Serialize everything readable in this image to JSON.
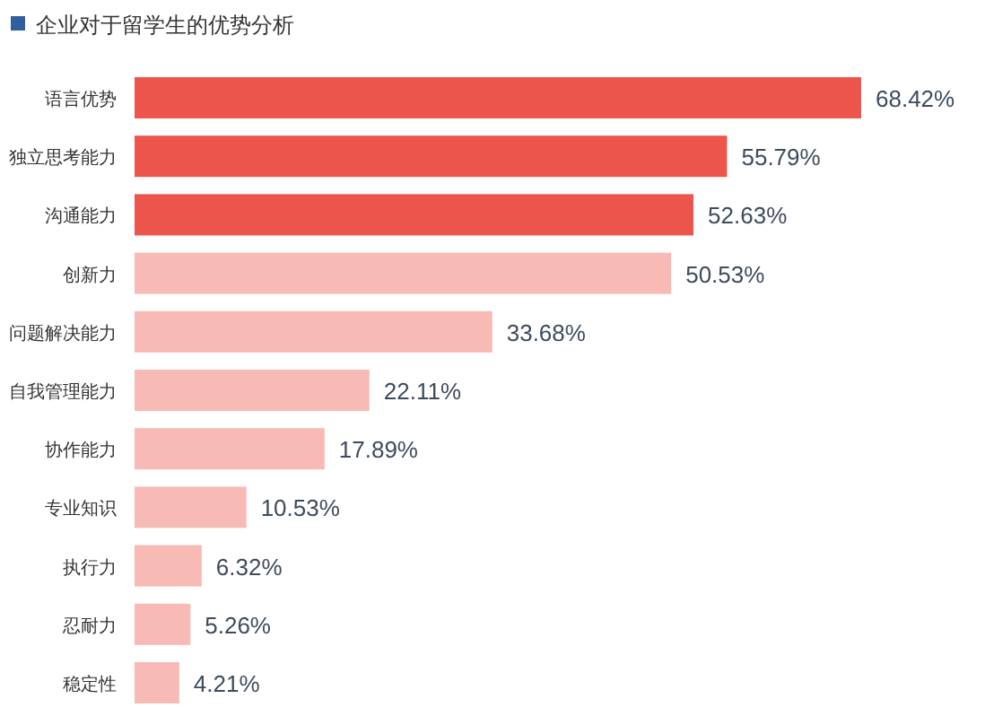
{
  "chart_data": {
    "type": "bar",
    "orientation": "horizontal",
    "title": "企业对于留学生的优势分析",
    "categories": [
      "语言优势",
      "独立思考能力",
      "沟通能力",
      "创新力",
      "问题解决能力",
      "自我管理能力",
      "协作能力",
      "专业知识",
      "执行力",
      "忍耐力",
      "稳定性"
    ],
    "values": [
      68.42,
      55.79,
      52.63,
      50.53,
      33.68,
      22.11,
      17.89,
      10.53,
      6.32,
      5.26,
      4.21
    ],
    "colors": [
      "#ec554c",
      "#ec554c",
      "#ec554c",
      "#f7bab4",
      "#f7bab4",
      "#f7bab4",
      "#f7bab4",
      "#f7bab4",
      "#f7bab4",
      "#f7bab4",
      "#f7bab4"
    ],
    "value_labels": [
      "68.42%",
      "55.79%",
      "52.63%",
      "50.53%",
      "33.68%",
      "22.11%",
      "17.89%",
      "10.53%",
      "6.32%",
      "5.26%",
      "4.21%"
    ]
  }
}
